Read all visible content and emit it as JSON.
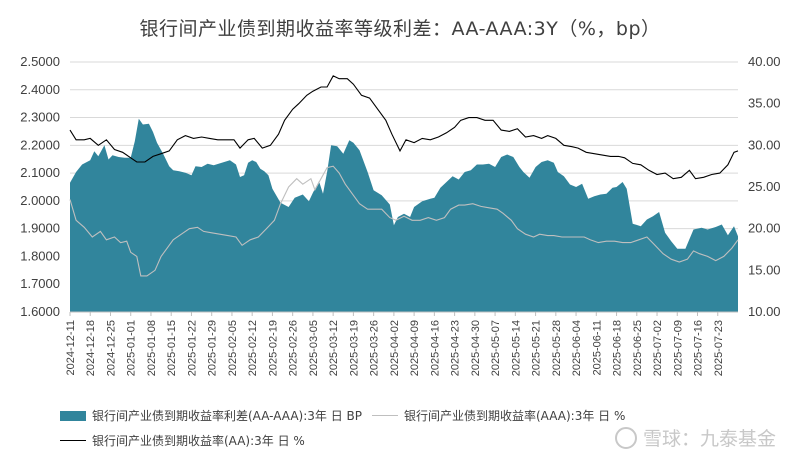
{
  "chart_data": {
    "type": "area",
    "title": "银行间产业债到期收益率等级利差：AA-AAA:3Y（%，bp）",
    "colors": {
      "spread": "#31859c",
      "aaa": "#bfbfbf",
      "aa": "#000000"
    },
    "left_axis": {
      "min": 1.6,
      "max": 2.5,
      "ticks": [
        "1.6000",
        "1.7000",
        "1.8000",
        "1.9000",
        "2.0000",
        "2.1000",
        "2.2000",
        "2.3000",
        "2.4000",
        "2.5000"
      ]
    },
    "right_axis": {
      "min": 10,
      "max": 40,
      "ticks": [
        "10.00",
        "15.00",
        "20.00",
        "25.00",
        "30.00",
        "35.00",
        "40.00"
      ]
    },
    "x_ticks": [
      "2024-12-11",
      "2024-12-18",
      "2024-12-25",
      "2025-01-01",
      "2025-01-08",
      "2025-01-15",
      "2025-01-22",
      "2025-01-29",
      "2025-02-05",
      "2025-02-12",
      "2025-02-19",
      "2025-02-26",
      "2025-03-05",
      "2025-03-12",
      "2025-03-19",
      "2025-03-26",
      "2025-04-02",
      "2025-04-09",
      "2025-04-16",
      "2025-04-23",
      "2025-04-30",
      "2025-05-07",
      "2025-05-14",
      "2025-05-21",
      "2025-05-28",
      "2025-06-04",
      "2025-06-11",
      "2025-06-18",
      "2025-06-25",
      "2025-07-02",
      "2025-07-09",
      "2025-07-16",
      "2025-07-23"
    ],
    "x_index_range": [
      0,
      33
    ],
    "grid": "horizontal",
    "series": [
      {
        "name": "银行间产业债到期收益率利差(AA-AAA):3年 日 BP",
        "type": "area",
        "axis": "right",
        "points": [
          [
            0,
            25.5
          ],
          [
            0.3,
            26.8
          ],
          [
            0.6,
            27.7
          ],
          [
            1.0,
            28.2
          ],
          [
            1.2,
            29.3
          ],
          [
            1.4,
            28.7
          ],
          [
            1.7,
            30.0
          ],
          [
            1.9,
            28.3
          ],
          [
            2.1,
            28.8
          ],
          [
            2.4,
            28.6
          ],
          [
            2.7,
            28.5
          ],
          [
            3.0,
            28.5
          ],
          [
            3.2,
            30.5
          ],
          [
            3.4,
            33.2
          ],
          [
            3.6,
            32.5
          ],
          [
            3.9,
            32.6
          ],
          [
            4.1,
            31.6
          ],
          [
            4.3,
            30.3
          ],
          [
            4.6,
            29.0
          ],
          [
            4.9,
            27.5
          ],
          [
            5.1,
            27.0
          ],
          [
            5.4,
            26.9
          ],
          [
            5.7,
            26.7
          ],
          [
            6.0,
            26.4
          ],
          [
            6.2,
            27.5
          ],
          [
            6.5,
            27.4
          ],
          [
            6.8,
            27.8
          ],
          [
            7.1,
            27.6
          ],
          [
            7.5,
            27.9
          ],
          [
            7.9,
            28.2
          ],
          [
            8.2,
            27.7
          ],
          [
            8.4,
            26.2
          ],
          [
            8.6,
            26.4
          ],
          [
            8.8,
            27.9
          ],
          [
            9.0,
            28.2
          ],
          [
            9.2,
            28.0
          ],
          [
            9.4,
            27.2
          ],
          [
            9.6,
            26.9
          ],
          [
            9.8,
            26.4
          ],
          [
            10.0,
            24.8
          ],
          [
            10.4,
            23.1
          ],
          [
            10.8,
            22.6
          ],
          [
            11.1,
            23.7
          ],
          [
            11.5,
            24.1
          ],
          [
            11.8,
            23.3
          ],
          [
            12.0,
            24.3
          ],
          [
            12.3,
            25.7
          ],
          [
            12.5,
            24.2
          ],
          [
            12.7,
            26.8
          ],
          [
            12.9,
            30.0
          ],
          [
            13.2,
            29.9
          ],
          [
            13.5,
            29.0
          ],
          [
            13.8,
            30.6
          ],
          [
            14.0,
            30.3
          ],
          [
            14.3,
            29.4
          ],
          [
            14.7,
            26.8
          ],
          [
            15.0,
            24.6
          ],
          [
            15.4,
            24.0
          ],
          [
            15.8,
            22.9
          ],
          [
            16.0,
            20.4
          ],
          [
            16.2,
            21.4
          ],
          [
            16.5,
            21.8
          ],
          [
            16.8,
            21.4
          ],
          [
            17.0,
            22.6
          ],
          [
            17.4,
            23.3
          ],
          [
            17.8,
            23.6
          ],
          [
            18.0,
            23.7
          ],
          [
            18.3,
            24.9
          ],
          [
            18.6,
            25.6
          ],
          [
            18.9,
            26.3
          ],
          [
            19.2,
            25.9
          ],
          [
            19.5,
            26.8
          ],
          [
            19.8,
            27.0
          ],
          [
            20.1,
            27.7
          ],
          [
            20.4,
            27.7
          ],
          [
            20.7,
            27.8
          ],
          [
            21.0,
            27.4
          ],
          [
            21.3,
            28.6
          ],
          [
            21.6,
            28.9
          ],
          [
            21.9,
            28.6
          ],
          [
            22.2,
            27.4
          ],
          [
            22.4,
            26.8
          ],
          [
            22.7,
            26.1
          ],
          [
            23.0,
            27.4
          ],
          [
            23.3,
            28.0
          ],
          [
            23.6,
            28.2
          ],
          [
            23.9,
            27.9
          ],
          [
            24.1,
            26.8
          ],
          [
            24.4,
            26.3
          ],
          [
            24.7,
            25.3
          ],
          [
            25.0,
            25.0
          ],
          [
            25.3,
            25.4
          ],
          [
            25.6,
            23.6
          ],
          [
            25.9,
            23.9
          ],
          [
            26.2,
            24.1
          ],
          [
            26.5,
            24.2
          ],
          [
            26.8,
            24.9
          ],
          [
            27.0,
            25.0
          ],
          [
            27.3,
            25.6
          ],
          [
            27.5,
            24.8
          ],
          [
            27.8,
            20.6
          ],
          [
            28.2,
            20.3
          ],
          [
            28.5,
            21.1
          ],
          [
            28.8,
            21.5
          ],
          [
            29.1,
            22.0
          ],
          [
            29.4,
            19.5
          ],
          [
            29.7,
            18.5
          ],
          [
            30.0,
            17.6
          ],
          [
            30.4,
            17.6
          ],
          [
            30.8,
            19.9
          ],
          [
            31.2,
            20.1
          ],
          [
            31.5,
            19.9
          ],
          [
            31.9,
            20.2
          ],
          [
            32.2,
            20.5
          ],
          [
            32.5,
            19.2
          ],
          [
            32.8,
            20.3
          ],
          [
            33.0,
            19.1
          ]
        ]
      },
      {
        "name": "银行间产业债到期收益率(AAA):3年 日 %",
        "type": "line",
        "axis": "left",
        "points": [
          [
            0,
            2.005
          ],
          [
            0.3,
            1.93
          ],
          [
            0.7,
            1.905
          ],
          [
            1.1,
            1.87
          ],
          [
            1.5,
            1.89
          ],
          [
            1.8,
            1.86
          ],
          [
            2.2,
            1.87
          ],
          [
            2.5,
            1.85
          ],
          [
            2.8,
            1.855
          ],
          [
            3.0,
            1.815
          ],
          [
            3.3,
            1.8
          ],
          [
            3.5,
            1.73
          ],
          [
            3.8,
            1.73
          ],
          [
            4.2,
            1.75
          ],
          [
            4.5,
            1.8
          ],
          [
            4.8,
            1.83
          ],
          [
            5.1,
            1.86
          ],
          [
            5.5,
            1.88
          ],
          [
            5.9,
            1.9
          ],
          [
            6.3,
            1.905
          ],
          [
            6.6,
            1.89
          ],
          [
            7.0,
            1.885
          ],
          [
            7.4,
            1.88
          ],
          [
            7.8,
            1.875
          ],
          [
            8.2,
            1.87
          ],
          [
            8.5,
            1.84
          ],
          [
            8.9,
            1.86
          ],
          [
            9.3,
            1.87
          ],
          [
            9.7,
            1.9
          ],
          [
            10.1,
            1.93
          ],
          [
            10.4,
            1.99
          ],
          [
            10.8,
            2.05
          ],
          [
            11.2,
            2.08
          ],
          [
            11.5,
            2.06
          ],
          [
            11.9,
            2.08
          ],
          [
            12.1,
            2.04
          ],
          [
            12.4,
            2.08
          ],
          [
            12.7,
            2.12
          ],
          [
            13.0,
            2.125
          ],
          [
            13.3,
            2.1
          ],
          [
            13.6,
            2.06
          ],
          [
            14.0,
            2.02
          ],
          [
            14.3,
            1.99
          ],
          [
            14.7,
            1.97
          ],
          [
            15.1,
            1.97
          ],
          [
            15.4,
            1.97
          ],
          [
            15.8,
            1.94
          ],
          [
            16.1,
            1.93
          ],
          [
            16.5,
            1.945
          ],
          [
            16.9,
            1.93
          ],
          [
            17.3,
            1.93
          ],
          [
            17.7,
            1.94
          ],
          [
            18.1,
            1.93
          ],
          [
            18.5,
            1.94
          ],
          [
            18.8,
            1.97
          ],
          [
            19.2,
            1.985
          ],
          [
            19.5,
            1.985
          ],
          [
            19.9,
            1.99
          ],
          [
            20.3,
            1.98
          ],
          [
            20.7,
            1.975
          ],
          [
            21.1,
            1.97
          ],
          [
            21.4,
            1.955
          ],
          [
            21.8,
            1.93
          ],
          [
            22.1,
            1.9
          ],
          [
            22.5,
            1.88
          ],
          [
            22.9,
            1.87
          ],
          [
            23.2,
            1.88
          ],
          [
            23.6,
            1.875
          ],
          [
            23.9,
            1.875
          ],
          [
            24.3,
            1.87
          ],
          [
            24.6,
            1.87
          ],
          [
            25.0,
            1.87
          ],
          [
            25.4,
            1.87
          ],
          [
            25.7,
            1.86
          ],
          [
            26.1,
            1.85
          ],
          [
            26.5,
            1.855
          ],
          [
            26.9,
            1.855
          ],
          [
            27.3,
            1.85
          ],
          [
            27.7,
            1.85
          ],
          [
            28.1,
            1.86
          ],
          [
            28.5,
            1.87
          ],
          [
            28.9,
            1.84
          ],
          [
            29.3,
            1.81
          ],
          [
            29.7,
            1.79
          ],
          [
            30.1,
            1.78
          ],
          [
            30.5,
            1.79
          ],
          [
            30.8,
            1.82
          ],
          [
            31.1,
            1.81
          ],
          [
            31.5,
            1.8
          ],
          [
            31.9,
            1.785
          ],
          [
            32.3,
            1.8
          ],
          [
            32.7,
            1.83
          ],
          [
            33.0,
            1.86
          ]
        ]
      },
      {
        "name": "银行间产业债到期收益率(AA):3年 日 %",
        "type": "line",
        "axis": "left",
        "points": [
          [
            0,
            2.255
          ],
          [
            0.3,
            2.22
          ],
          [
            0.7,
            2.22
          ],
          [
            1.0,
            2.225
          ],
          [
            1.4,
            2.2
          ],
          [
            1.8,
            2.22
          ],
          [
            2.2,
            2.185
          ],
          [
            2.6,
            2.175
          ],
          [
            3.0,
            2.155
          ],
          [
            3.3,
            2.14
          ],
          [
            3.7,
            2.14
          ],
          [
            4.1,
            2.16
          ],
          [
            4.5,
            2.17
          ],
          [
            4.9,
            2.18
          ],
          [
            5.3,
            2.22
          ],
          [
            5.7,
            2.235
          ],
          [
            6.1,
            2.225
          ],
          [
            6.5,
            2.23
          ],
          [
            6.9,
            2.225
          ],
          [
            7.3,
            2.22
          ],
          [
            7.7,
            2.22
          ],
          [
            8.1,
            2.22
          ],
          [
            8.4,
            2.19
          ],
          [
            8.8,
            2.22
          ],
          [
            9.1,
            2.225
          ],
          [
            9.5,
            2.19
          ],
          [
            9.9,
            2.2
          ],
          [
            10.3,
            2.24
          ],
          [
            10.6,
            2.29
          ],
          [
            11.0,
            2.33
          ],
          [
            11.3,
            2.35
          ],
          [
            11.7,
            2.38
          ],
          [
            12.0,
            2.395
          ],
          [
            12.4,
            2.41
          ],
          [
            12.7,
            2.41
          ],
          [
            13.0,
            2.45
          ],
          [
            13.3,
            2.44
          ],
          [
            13.7,
            2.44
          ],
          [
            14.0,
            2.42
          ],
          [
            14.4,
            2.38
          ],
          [
            14.8,
            2.37
          ],
          [
            15.2,
            2.33
          ],
          [
            15.6,
            2.29
          ],
          [
            15.9,
            2.24
          ],
          [
            16.3,
            2.18
          ],
          [
            16.6,
            2.22
          ],
          [
            17.0,
            2.21
          ],
          [
            17.4,
            2.225
          ],
          [
            17.8,
            2.22
          ],
          [
            18.2,
            2.23
          ],
          [
            18.6,
            2.245
          ],
          [
            19.0,
            2.265
          ],
          [
            19.3,
            2.29
          ],
          [
            19.7,
            2.3
          ],
          [
            20.1,
            2.3
          ],
          [
            20.5,
            2.29
          ],
          [
            20.9,
            2.29
          ],
          [
            21.3,
            2.255
          ],
          [
            21.7,
            2.25
          ],
          [
            22.1,
            2.26
          ],
          [
            22.5,
            2.23
          ],
          [
            22.9,
            2.235
          ],
          [
            23.3,
            2.225
          ],
          [
            23.6,
            2.235
          ],
          [
            24.0,
            2.225
          ],
          [
            24.4,
            2.2
          ],
          [
            24.8,
            2.195
          ],
          [
            25.1,
            2.19
          ],
          [
            25.5,
            2.175
          ],
          [
            25.9,
            2.17
          ],
          [
            26.3,
            2.165
          ],
          [
            26.7,
            2.16
          ],
          [
            27.1,
            2.16
          ],
          [
            27.4,
            2.155
          ],
          [
            27.8,
            2.135
          ],
          [
            28.2,
            2.13
          ],
          [
            28.6,
            2.11
          ],
          [
            29.0,
            2.095
          ],
          [
            29.4,
            2.1
          ],
          [
            29.8,
            2.08
          ],
          [
            30.2,
            2.085
          ],
          [
            30.6,
            2.11
          ],
          [
            30.9,
            2.08
          ],
          [
            31.3,
            2.085
          ],
          [
            31.7,
            2.095
          ],
          [
            32.1,
            2.1
          ],
          [
            32.5,
            2.13
          ],
          [
            32.8,
            2.175
          ],
          [
            33.0,
            2.18
          ]
        ]
      }
    ]
  },
  "legend": {
    "spread_label": "银行间产业债到期收益率利差(AA-AAA):3年 日 BP",
    "aaa_label": "银行间产业债到期收益率(AAA):3年 日 %",
    "aa_label": "银行间产业债到期收益率(AA):3年 日 %"
  },
  "watermark": {
    "text": "雪球：九泰基金"
  }
}
